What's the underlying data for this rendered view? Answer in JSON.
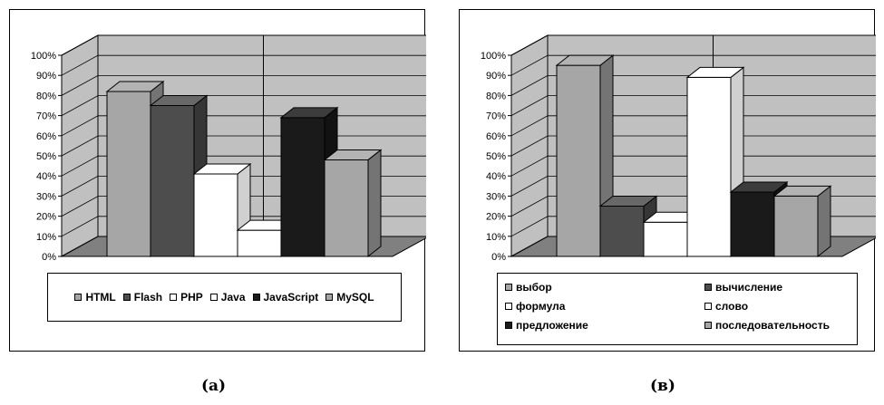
{
  "charts": {
    "a": {
      "caption": "(a)",
      "chart_data": {
        "type": "bar",
        "categories": [
          "HTML",
          "Flash",
          "PHP",
          "Java",
          "JavaScript",
          "MySQL"
        ],
        "values": [
          82,
          75,
          41,
          13,
          69,
          48
        ],
        "ylim": [
          0,
          100
        ],
        "yticks": [
          "0%",
          "10%",
          "20%",
          "30%",
          "40%",
          "50%",
          "60%",
          "70%",
          "80%",
          "90%",
          "100%"
        ],
        "grid": true,
        "legend_position": "bottom",
        "legend": [
          "HTML",
          "Flash",
          "PHP",
          "Java",
          "JavaScript",
          "MySQL"
        ]
      },
      "colors": [
        "#a6a6a6",
        "#4d4d4d",
        "#ffffff",
        "#ffffff",
        "#1a1a1a",
        "#a6a6a6"
      ]
    },
    "b": {
      "caption": "(в)",
      "chart_data": {
        "type": "bar",
        "categories": [
          "выбор",
          "вычисление",
          "формула",
          "слово",
          "предложение",
          "последовательность"
        ],
        "values": [
          95,
          25,
          17,
          89,
          32,
          30
        ],
        "ylim": [
          0,
          100
        ],
        "yticks": [
          "0%",
          "10%",
          "20%",
          "30%",
          "40%",
          "50%",
          "60%",
          "70%",
          "80%",
          "90%",
          "100%"
        ],
        "grid": true,
        "legend_position": "bottom",
        "legend": [
          "выбор",
          "вычисление",
          "формула",
          "слово",
          "предложение",
          "последовательность"
        ]
      },
      "colors": [
        "#a6a6a6",
        "#4d4d4d",
        "#ffffff",
        "#ffffff",
        "#1a1a1a",
        "#a6a6a6"
      ]
    }
  }
}
